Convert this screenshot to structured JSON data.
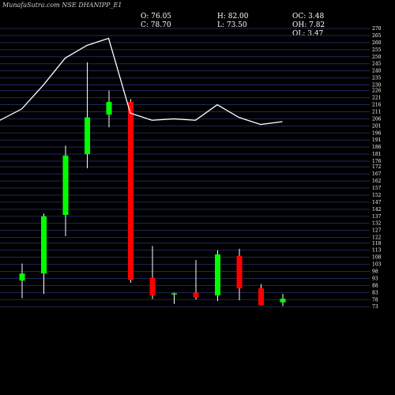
{
  "header": {
    "title": "MunafaSutra.com NSE DHANIPP_E1",
    "o_label": "O: 76.05",
    "h_label": "H: 82.00",
    "oc_label": "OC: 3.48",
    "c_label": "C: 78.70",
    "l_label": "L: 73.50",
    "oh_label": "OH: 7.82",
    "ol_label": "OL: 3.47"
  },
  "colors": {
    "up": "#00ff00",
    "down": "#ff0000",
    "wick": "#ffffff",
    "line": "#ffffff",
    "grid": "#1f2a5c",
    "background": "#000000"
  },
  "chart_data": {
    "type": "candlestick",
    "ylim": [
      72,
      270
    ],
    "y_ticks": [
      270,
      265,
      260,
      255,
      250,
      245,
      240,
      235,
      230,
      226,
      221,
      216,
      211,
      206,
      201,
      196,
      191,
      186,
      181,
      176,
      172,
      167,
      162,
      157,
      152,
      147,
      142,
      137,
      132,
      127,
      122,
      118,
      113,
      108,
      103,
      98,
      93,
      88,
      83,
      78,
      73
    ],
    "candles": [
      {
        "o": 91.5,
        "h": 103.5,
        "l": 79.0,
        "c": 96.5
      },
      {
        "o": 96.5,
        "h": 139.0,
        "l": 82.0,
        "c": 137.0
      },
      {
        "o": 138.0,
        "h": 187.0,
        "l": 123.0,
        "c": 180.0
      },
      {
        "o": 181.0,
        "h": 246.0,
        "l": 171.0,
        "c": 207.0
      },
      {
        "o": 209.0,
        "h": 226.0,
        "l": 200.0,
        "c": 218.0
      },
      {
        "o": 218.0,
        "h": 220.0,
        "l": 90.0,
        "c": 92.0
      },
      {
        "o": 93.5,
        "h": 116.0,
        "l": 78.5,
        "c": 81.0
      },
      {
        "o": 82.0,
        "h": 83.0,
        "l": 75.0,
        "c": 82.5
      },
      {
        "o": 83.0,
        "h": 106.0,
        "l": 78.0,
        "c": 79.5
      },
      {
        "o": 81.0,
        "h": 113.0,
        "l": 77.0,
        "c": 110.0
      },
      {
        "o": 109.0,
        "h": 114.0,
        "l": 77.5,
        "c": 86.0
      },
      {
        "o": 86.0,
        "h": 89.0,
        "l": 74.0,
        "c": 74.0
      },
      {
        "o": 76.05,
        "h": 82.0,
        "l": 73.5,
        "c": 78.7
      }
    ],
    "line_values": [
      205.0,
      213.0,
      230.0,
      249.0,
      258.0,
      263.0,
      210.0,
      205.0,
      206.0,
      205.0,
      216.0,
      207.0,
      202.0,
      204.0
    ]
  }
}
